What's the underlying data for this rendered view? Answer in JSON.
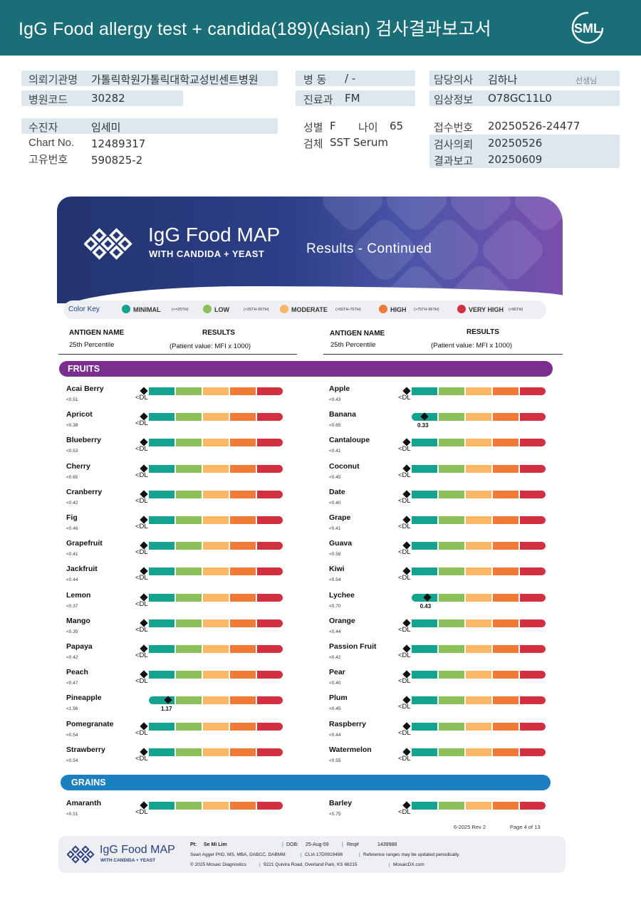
{
  "header": {
    "title": "IgG Food allergy test + candida(189)(Asian) 검사결과보고서",
    "logo": "SML"
  },
  "patient": {
    "institution_label": "의뢰기관명",
    "institution": "가톨릭학원가톨릭대학교성빈센트병원",
    "hospital_code_label": "병원코드",
    "hospital_code": "30282",
    "ward_label": "병   동",
    "ward": "/ -",
    "department_label": "진료과",
    "department": "FM",
    "doctor_label": "담당의사",
    "doctor": "김하나",
    "doctor_title": "선생님",
    "clinical_label": "임상정보",
    "clinical": "O78GC11L0",
    "examinee_label": "수진자",
    "examinee": "임세미",
    "chart_label": "Chart No.",
    "chart": "12489317",
    "id_label": "고유번호",
    "id": "590825-2",
    "sex_label": "성별",
    "sex": "F",
    "age_label": "나이",
    "age": "65",
    "specimen_label": "검체",
    "specimen": "SST Serum",
    "receipt_label": "접수번호",
    "receipt": "20250526-24477",
    "request_label": "검사의뢰",
    "request": "20250526",
    "report_label": "결과보고",
    "report": "20250609"
  },
  "report": {
    "brand_title": "IgG Food MAP",
    "brand_subtitle": "WITH CANDIDA + YEAST",
    "page_heading": "Results - Continued",
    "color_key": {
      "title": "Color Key",
      "items": [
        {
          "name": "MINIMAL",
          "range": "(<=25TH)",
          "color": "#13a38f"
        },
        {
          "name": "LOW",
          "range": "(>25TH-50TH)",
          "color": "#8cbf5a"
        },
        {
          "name": "MODERATE",
          "range": "(>50TH-75TH)",
          "color": "#fbb864"
        },
        {
          "name": "HIGH",
          "range": "(>75TH-95TH)",
          "color": "#f07a36"
        },
        {
          "name": "VERY HIGH",
          "range": "(>95TH)",
          "color": "#d23040"
        }
      ]
    },
    "column_headers": {
      "antigen": "ANTIGEN NAME",
      "percentile": "25th Percentile",
      "results": "RESULTS",
      "patient_value": "(Patient value: MFI x 1000)"
    },
    "sections": {
      "fruits": "FRUITS",
      "grains": "GRAINS"
    },
    "fruits_left": [
      {
        "name": "Acai Berry",
        "pct": "<0.51",
        "result": "<DL"
      },
      {
        "name": "Apricot",
        "pct": "<0.38",
        "result": "<DL"
      },
      {
        "name": "Blueberry",
        "pct": "<0.53",
        "result": "<DL"
      },
      {
        "name": "Cherry",
        "pct": "<0.65",
        "result": "<DL"
      },
      {
        "name": "Cranberry",
        "pct": "<0.42",
        "result": "<DL"
      },
      {
        "name": "Fig",
        "pct": "<0.46",
        "result": "<DL"
      },
      {
        "name": "Grapefruit",
        "pct": "<0.41",
        "result": "<DL"
      },
      {
        "name": "Jackfruit",
        "pct": "<0.44",
        "result": "<DL"
      },
      {
        "name": "Lemon",
        "pct": "<0.37",
        "result": "<DL"
      },
      {
        "name": "Mango",
        "pct": "<0.35",
        "result": "<DL"
      },
      {
        "name": "Papaya",
        "pct": "<0.42",
        "result": "<DL"
      },
      {
        "name": "Peach",
        "pct": "<0.47",
        "result": "<DL"
      },
      {
        "name": "Pineapple",
        "pct": "<1.56",
        "result": "1.17",
        "level": 0.75
      },
      {
        "name": "Pomegranate",
        "pct": "<0.54",
        "result": "<DL"
      },
      {
        "name": "Strawberry",
        "pct": "<0.54",
        "result": "<DL"
      }
    ],
    "fruits_right": [
      {
        "name": "Apple",
        "pct": "<0.43",
        "result": "<DL"
      },
      {
        "name": "Banana",
        "pct": "<0.65",
        "result": "0.33",
        "level": 0.5
      },
      {
        "name": "Cantaloupe",
        "pct": "<0.41",
        "result": "<DL"
      },
      {
        "name": "Coconut",
        "pct": "<0.45",
        "result": "<DL"
      },
      {
        "name": "Date",
        "pct": "<0.40",
        "result": "<DL"
      },
      {
        "name": "Grape",
        "pct": "<0.41",
        "result": "<DL"
      },
      {
        "name": "Guava",
        "pct": "<0.59",
        "result": "<DL"
      },
      {
        "name": "Kiwi",
        "pct": "<0.54",
        "result": "<DL"
      },
      {
        "name": "Lychee",
        "pct": "<0.70",
        "result": "0.43",
        "level": 0.6
      },
      {
        "name": "Orange",
        "pct": "<0.44",
        "result": "<DL"
      },
      {
        "name": "Passion Fruit",
        "pct": "<0.42",
        "result": "<DL"
      },
      {
        "name": "Pear",
        "pct": "<0.40",
        "result": "<DL"
      },
      {
        "name": "Plum",
        "pct": "<0.45",
        "result": "<DL"
      },
      {
        "name": "Raspberry",
        "pct": "<0.44",
        "result": "<DL"
      },
      {
        "name": "Watermelon",
        "pct": "<0.55",
        "result": "<DL"
      }
    ],
    "grains_left": [
      {
        "name": "Amaranth",
        "pct": "<0.51",
        "result": "<DL"
      }
    ],
    "grains_right": [
      {
        "name": "Barley",
        "pct": "<0.75",
        "result": "<DL"
      }
    ],
    "rev": "6-2025 Rev 2",
    "page": "Page 4 of 13",
    "footer": {
      "brand": "IgG Food MAP",
      "brand_sub": "WITH CANDIDA + YEAST",
      "pt_label": "Pt:",
      "pt_name": "Se Mi Lim",
      "dob_label": "DOB:",
      "dob": "25-Aug-59",
      "req_label": "Req#",
      "req": "1439988",
      "credentials": "Sean Agger PhD, MS, MBA, DABCC, DABMM",
      "clia": "CLIA 17D0919496",
      "disclaimer": "Reference ranges may be updated periodically.",
      "copyright": "© 2025 Mosaic Diagnostics",
      "address": "9221 Quivira Road, Overland Park, KS 66215",
      "website": "MosaicDX.com"
    }
  }
}
